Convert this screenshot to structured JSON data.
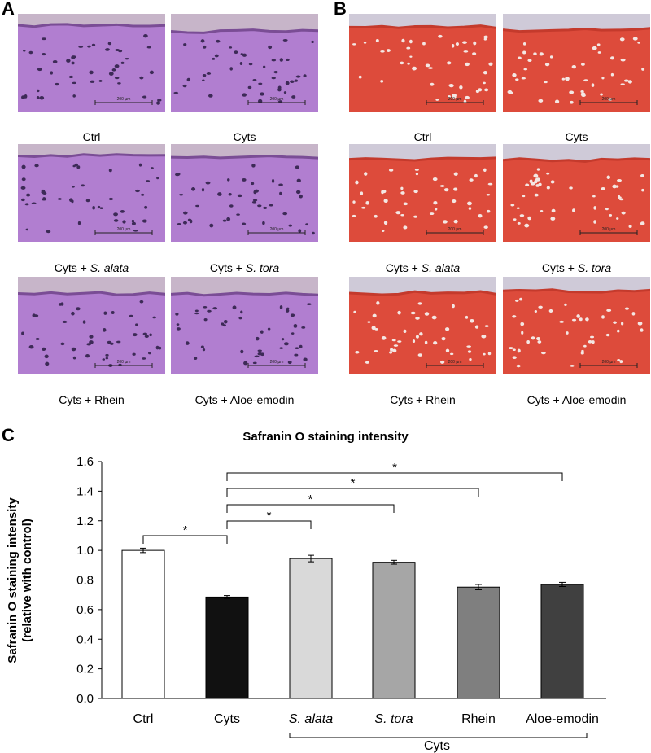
{
  "panels": {
    "a_letter": "A",
    "b_letter": "B",
    "c_letter": "C"
  },
  "micrographs": {
    "scale_label": "200 µm",
    "he_colors": {
      "background": "#c7b5c9",
      "tissue": "#b17ed0",
      "surface": "#7a4d95",
      "cell": "#3d2a57"
    },
    "safranin_colors": {
      "background": "#cfcad8",
      "tissue": "#dd4b3b",
      "surface": "#c43a2c",
      "cell": "#f4e7e3"
    },
    "captions": [
      {
        "prefix": "Ctrl",
        "italic": ""
      },
      {
        "prefix": "Cyts",
        "italic": ""
      },
      {
        "prefix": "Cyts + ",
        "italic": "S. alata"
      },
      {
        "prefix": "Cyts + ",
        "italic": "S. tora"
      },
      {
        "prefix": "Cyts + Rhein",
        "italic": ""
      },
      {
        "prefix": "Cyts + Aloe-emodin",
        "italic": ""
      }
    ]
  },
  "chart_data": {
    "type": "bar",
    "title": "Safranin O staining intensity",
    "ylabel_line1": "Safranin O staining intensity",
    "ylabel_line2": "(relative with control)",
    "categories": [
      "Ctrl",
      "Cyts",
      "S. alata",
      "S. tora",
      "Rhein",
      "Aloe-emodin"
    ],
    "italic_categories": [
      false,
      false,
      true,
      true,
      false,
      false
    ],
    "values": [
      1.0,
      0.685,
      0.945,
      0.92,
      0.752,
      0.77
    ],
    "errors": [
      0.015,
      0.01,
      0.022,
      0.013,
      0.018,
      0.014
    ],
    "bar_colors": [
      "#ffffff",
      "#111111",
      "#d9d9d9",
      "#a6a6a6",
      "#7f7f7f",
      "#404040"
    ],
    "ylim": [
      0,
      1.6
    ],
    "yticks": [
      "0.0",
      "0.2",
      "0.4",
      "0.6",
      "0.8",
      "1.0",
      "1.2",
      "1.4",
      "1.6"
    ],
    "group_label": "Cyts",
    "significance": [
      {
        "from": 0,
        "to": 1,
        "label": "*"
      },
      {
        "from": 1,
        "to": 2,
        "label": "*"
      },
      {
        "from": 1,
        "to": 3,
        "label": "*"
      },
      {
        "from": 1,
        "to": 4,
        "label": "*"
      },
      {
        "from": 1,
        "to": 5,
        "label": "*"
      }
    ]
  }
}
